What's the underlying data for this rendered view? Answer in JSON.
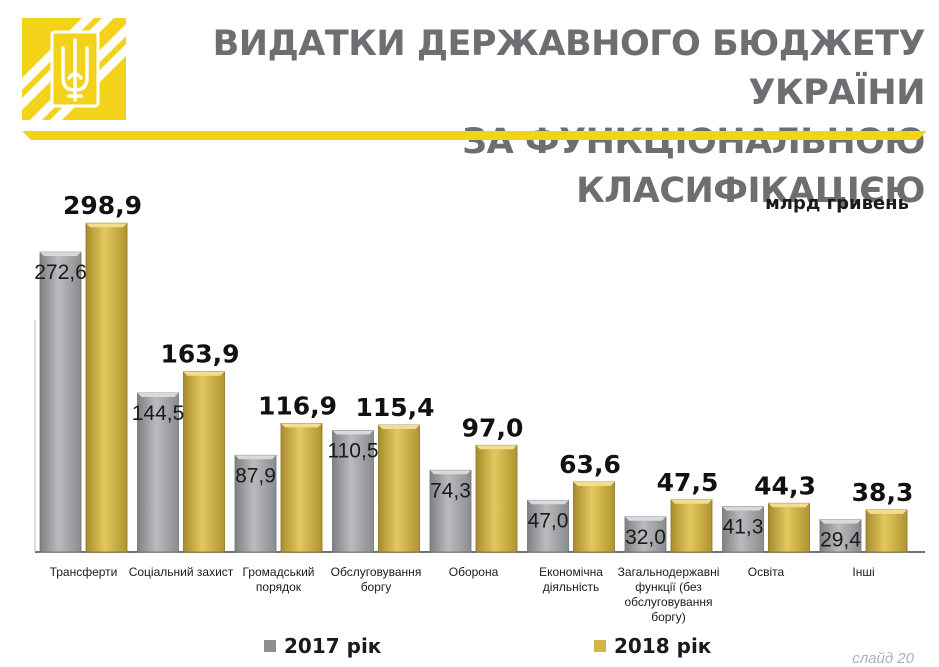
{
  "header": {
    "title_line1": "ВИДАТКИ ДЕРЖАВНОГО БЮДЖЕТУ УКРАЇНИ",
    "title_line2": "ЗА ФУНКЦІОНАЛЬНОЮ КЛАСИФІКАЦІЄЮ",
    "logo": "trident-emblem-icon"
  },
  "unit": "млрд гривень",
  "slide_number": "слайд 20",
  "colors": {
    "gold": "#f3d31a",
    "bar_2017": "#a7a9ac",
    "bar_2018": "#d4b54b",
    "title_gray": "#6d6e71"
  },
  "chart_data": {
    "type": "bar",
    "categories": [
      [
        "Трансферти"
      ],
      [
        "Соціальний захист"
      ],
      [
        "Громадський",
        "порядок"
      ],
      [
        "Обслуговування",
        "боргу"
      ],
      [
        "Оборона"
      ],
      [
        "Економічна",
        "діяльність"
      ],
      [
        "Загальнодержавні",
        "функції (без",
        "обслуговування",
        "боргу)"
      ],
      [
        "Освіта"
      ],
      [
        "Інші"
      ]
    ],
    "series": [
      {
        "name": "2017 рік",
        "values": [
          272.6,
          144.5,
          87.9,
          110.5,
          74.3,
          47.0,
          32.0,
          41.3,
          29.4
        ],
        "labels": [
          "272,6",
          "144,5",
          "87,9",
          "110,5",
          "74,3",
          "47,0",
          "32,0",
          "41,3",
          "29,4"
        ]
      },
      {
        "name": "2018 рік",
        "values": [
          298.9,
          163.9,
          116.9,
          115.4,
          97.0,
          63.6,
          47.5,
          44.3,
          38.3
        ],
        "labels": [
          "298,9",
          "163,9",
          "116,9",
          "115,4",
          "97,0",
          "63,6",
          "47,5",
          "44,3",
          "38,3"
        ]
      }
    ],
    "ylim": [
      0,
      300
    ],
    "grid": false,
    "legend": "bottom"
  }
}
